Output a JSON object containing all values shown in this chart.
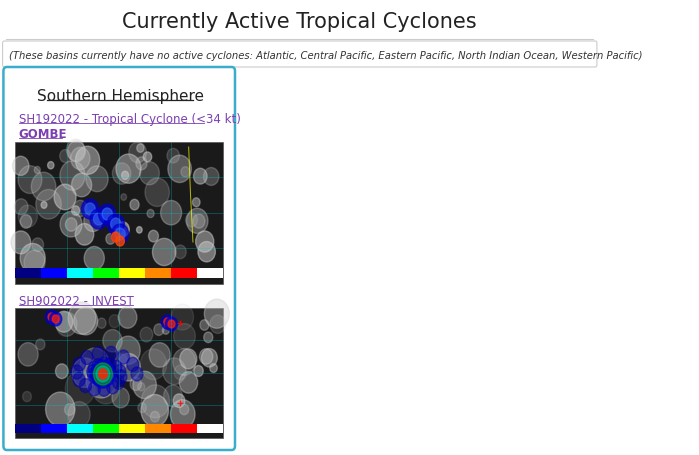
{
  "title": "Currently Active Tropical Cyclones",
  "subtitle": "(These basins currently have no active cyclones: Atlantic, Central Pacific, Eastern Pacific, North Indian Ocean, Western Pacific)",
  "panel_title": "Southern Hemisphere",
  "link1_line1": "SH192022 - Tropical Cyclone (<34 kt)",
  "link1_line2": "GOMBE",
  "link2": "SH902022 - INVEST",
  "bg_color": "#ffffff",
  "panel_bg": "#ffffff",
  "panel_border_color": "#3aaccc",
  "subtitle_border_color": "#cccccc",
  "link_color": "#7B3FB0",
  "title_color": "#222222",
  "subtitle_color": "#333333",
  "panel_title_color": "#222222",
  "img1_bg": "#1a1a1a",
  "img2_bg": "#1a1a1a"
}
